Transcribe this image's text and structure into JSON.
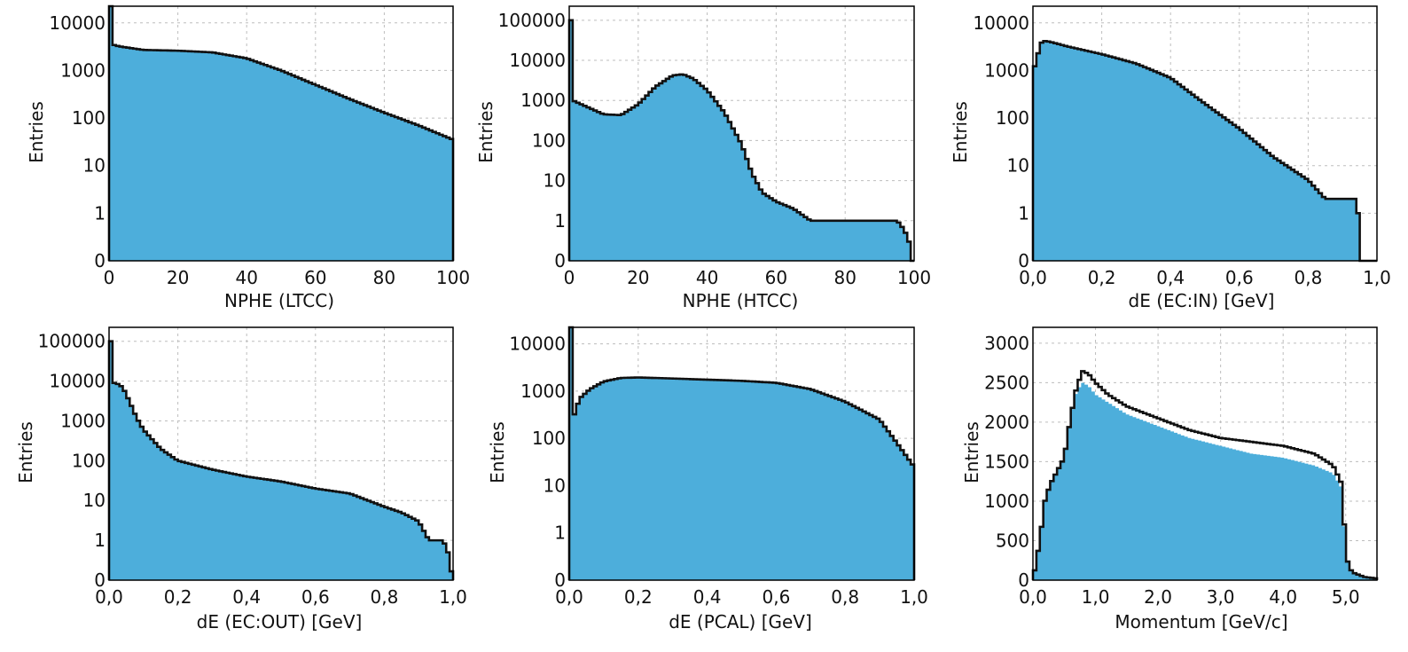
{
  "colors": {
    "fill": "#4daedb",
    "line": "#111111",
    "grid": "#bdbdbd"
  },
  "chart_data": [
    {
      "type": "area",
      "xlabel": "NPHE (LTCC)",
      "ylabel": "Entries",
      "yscale": "log",
      "xlim": [
        0,
        100
      ],
      "ylim_decades": [
        0,
        4
      ],
      "x_ticks": [
        0,
        20,
        40,
        60,
        80,
        100
      ],
      "x_tick_labels": [
        "0",
        "20",
        "40",
        "60",
        "80",
        "100"
      ],
      "y_ticks": [
        0,
        1,
        10,
        100,
        1000,
        10000
      ],
      "y_tick_labels": [
        "0",
        "1",
        "10",
        "100",
        "1000",
        "10000"
      ],
      "grid": true,
      "series": [
        {
          "x": [
            0,
            1,
            3,
            10,
            20,
            30,
            40,
            50,
            60,
            70,
            80,
            90,
            100
          ],
          "y": [
            40000,
            3500,
            3200,
            2700,
            2600,
            2400,
            1800,
            1000,
            500,
            250,
            130,
            70,
            35
          ]
        }
      ]
    },
    {
      "type": "area",
      "xlabel": "NPHE (HTCC)",
      "ylabel": "Entries",
      "yscale": "log",
      "xlim": [
        0,
        100
      ],
      "ylim_decades": [
        0,
        5
      ],
      "x_ticks": [
        0,
        20,
        40,
        60,
        80,
        100
      ],
      "x_tick_labels": [
        "0",
        "20",
        "40",
        "60",
        "80",
        "100"
      ],
      "y_ticks": [
        0,
        1,
        10,
        100,
        1000,
        10000,
        100000
      ],
      "y_tick_labels": [
        "0",
        "1",
        "10",
        "100",
        "1000",
        "10000",
        "100000"
      ],
      "grid": true,
      "series": [
        {
          "x": [
            0,
            1,
            5,
            10,
            15,
            20,
            25,
            30,
            33,
            36,
            40,
            45,
            50,
            53,
            56,
            60,
            65,
            70,
            72,
            75,
            80,
            85,
            90,
            95,
            100
          ],
          "y": [
            100000,
            1000,
            700,
            450,
            430,
            800,
            2200,
            4200,
            4500,
            3500,
            1800,
            500,
            80,
            15,
            5,
            3,
            2,
            1,
            1,
            1,
            1,
            1,
            1,
            1,
            0
          ]
        }
      ]
    },
    {
      "type": "area",
      "xlabel": "dE (EC:IN) [GeV]",
      "ylabel": "Entries",
      "yscale": "log",
      "xlim": [
        0,
        1.0
      ],
      "ylim_decades": [
        0,
        4
      ],
      "x_ticks": [
        0,
        0.2,
        0.4,
        0.6,
        0.8,
        1.0
      ],
      "x_tick_labels": [
        "0,0",
        "0,2",
        "0,4",
        "0,6",
        "0,8",
        "1,0"
      ],
      "y_ticks": [
        0,
        1,
        10,
        100,
        1000,
        10000
      ],
      "y_tick_labels": [
        "0",
        "1",
        "10",
        "100",
        "1000",
        "10000"
      ],
      "grid": true,
      "series": [
        {
          "x": [
            0,
            0.01,
            0.02,
            0.03,
            0.05,
            0.1,
            0.2,
            0.3,
            0.4,
            0.5,
            0.6,
            0.7,
            0.8,
            0.85,
            0.9,
            0.94,
            0.95
          ],
          "y": [
            1000,
            1500,
            3500,
            4200,
            4000,
            3200,
            2200,
            1400,
            700,
            200,
            60,
            15,
            5,
            2,
            2,
            2,
            0
          ]
        }
      ]
    },
    {
      "type": "area",
      "xlabel": "dE (EC:OUT) [GeV]",
      "ylabel": "Entries",
      "yscale": "log",
      "xlim": [
        0,
        1.0
      ],
      "ylim_decades": [
        0,
        5
      ],
      "x_ticks": [
        0,
        0.2,
        0.4,
        0.6,
        0.8,
        1.0
      ],
      "x_tick_labels": [
        "0,0",
        "0,2",
        "0,4",
        "0,6",
        "0,8",
        "1,0"
      ],
      "y_ticks": [
        0,
        1,
        10,
        100,
        1000,
        10000,
        100000
      ],
      "y_tick_labels": [
        "0",
        "1",
        "10",
        "100",
        "1000",
        "10000",
        "100000"
      ],
      "grid": true,
      "series": [
        {
          "x": [
            0,
            0.01,
            0.02,
            0.04,
            0.06,
            0.08,
            0.1,
            0.15,
            0.2,
            0.3,
            0.4,
            0.5,
            0.6,
            0.7,
            0.8,
            0.85,
            0.9,
            0.93,
            0.95,
            0.97,
            1.0
          ],
          "y": [
            100000,
            9000,
            9000,
            7000,
            3000,
            1200,
            600,
            200,
            100,
            60,
            40,
            30,
            20,
            15,
            7,
            5,
            3,
            1,
            1,
            1,
            0
          ]
        }
      ]
    },
    {
      "type": "area",
      "xlabel": "dE (PCAL) [GeV]",
      "ylabel": "Entries",
      "yscale": "log",
      "xlim": [
        0,
        1.0
      ],
      "ylim_decades": [
        0,
        4
      ],
      "x_ticks": [
        0,
        0.2,
        0.4,
        0.6,
        0.8,
        1.0
      ],
      "x_tick_labels": [
        "0,0",
        "0,2",
        "0,4",
        "0,6",
        "0,8",
        "1,0"
      ],
      "y_ticks": [
        0,
        1,
        10,
        100,
        1000,
        10000
      ],
      "y_tick_labels": [
        "0",
        "1",
        "10",
        "100",
        "1000",
        "10000"
      ],
      "grid": true,
      "series": [
        {
          "x": [
            0,
            0.005,
            0.01,
            0.03,
            0.06,
            0.1,
            0.15,
            0.2,
            0.3,
            0.4,
            0.5,
            0.6,
            0.7,
            0.8,
            0.9,
            0.95,
            1.0
          ],
          "y": [
            40000,
            200,
            250,
            700,
            1100,
            1600,
            1900,
            1950,
            1850,
            1750,
            1650,
            1500,
            1100,
            600,
            250,
            80,
            25
          ]
        }
      ]
    },
    {
      "type": "area",
      "xlabel": "Momentum [GeV/c]",
      "ylabel": "Entries",
      "yscale": "linear",
      "xlim": [
        0,
        5.5
      ],
      "ylim": [
        0,
        3200
      ],
      "x_ticks": [
        0,
        1,
        2,
        3,
        4,
        5
      ],
      "x_tick_labels": [
        "0,0",
        "1,0",
        "2,0",
        "3,0",
        "4,0",
        "5,0"
      ],
      "y_ticks": [
        0,
        500,
        1000,
        1500,
        2000,
        2500,
        3000
      ],
      "y_tick_labels": [
        "0",
        "500",
        "1000",
        "1500",
        "2000",
        "2500",
        "3000"
      ],
      "grid": true,
      "series": [
        {
          "name": "outline",
          "x": [
            0,
            0.1,
            0.2,
            0.3,
            0.5,
            0.6,
            0.7,
            0.8,
            0.9,
            1.0,
            1.2,
            1.5,
            2.0,
            2.5,
            3.0,
            3.5,
            4.0,
            4.5,
            4.8,
            4.95,
            5.0,
            5.1,
            5.3,
            5.5
          ],
          "y": [
            0,
            450,
            1050,
            1250,
            1550,
            2050,
            2450,
            2650,
            2600,
            2500,
            2350,
            2200,
            2050,
            1900,
            1800,
            1750,
            1700,
            1600,
            1450,
            1200,
            300,
            100,
            40,
            20
          ]
        },
        {
          "name": "filled",
          "x": [
            0,
            0.1,
            0.2,
            0.3,
            0.5,
            0.6,
            0.7,
            0.8,
            0.9,
            1.0,
            1.2,
            1.5,
            2.0,
            2.5,
            3.0,
            3.5,
            4.0,
            4.5,
            4.8,
            4.95,
            5.0,
            5.1,
            5.3,
            5.5
          ],
          "y": [
            0,
            450,
            1050,
            1250,
            1550,
            2050,
            2400,
            2500,
            2450,
            2350,
            2250,
            2100,
            1950,
            1800,
            1700,
            1600,
            1550,
            1450,
            1350,
            1150,
            300,
            100,
            40,
            20
          ]
        }
      ]
    }
  ]
}
